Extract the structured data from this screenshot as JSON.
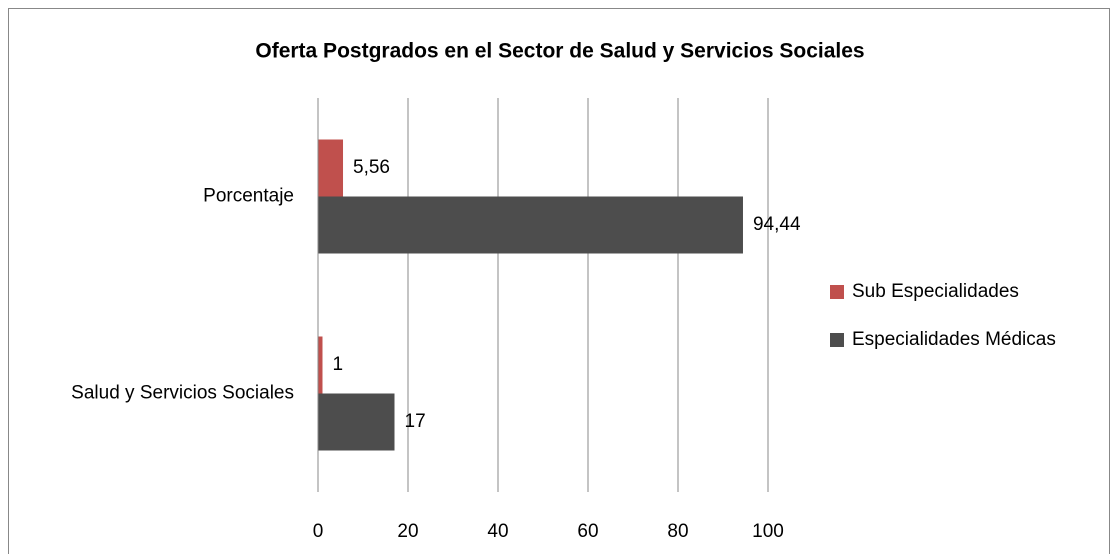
{
  "chart_data": {
    "type": "hbar",
    "title": "Oferta Postgrados en el Sector de Salud y Servicios Sociales",
    "categories": [
      "Porcentaje",
      "Salud y Servicios Sociales"
    ],
    "series": [
      {
        "name": "Sub Especialidades",
        "color": "#c0504d",
        "values": [
          5.56,
          1
        ],
        "value_labels": [
          "5,56",
          "1"
        ]
      },
      {
        "name": "Especialidades Médicas",
        "color": "#4d4d4d",
        "values": [
          94.44,
          17
        ],
        "value_labels": [
          "94,44",
          "17"
        ]
      }
    ],
    "xlim": [
      0,
      100
    ],
    "xticks": [
      0,
      20,
      40,
      60,
      80,
      100
    ],
    "grid": true,
    "legend": "right"
  }
}
